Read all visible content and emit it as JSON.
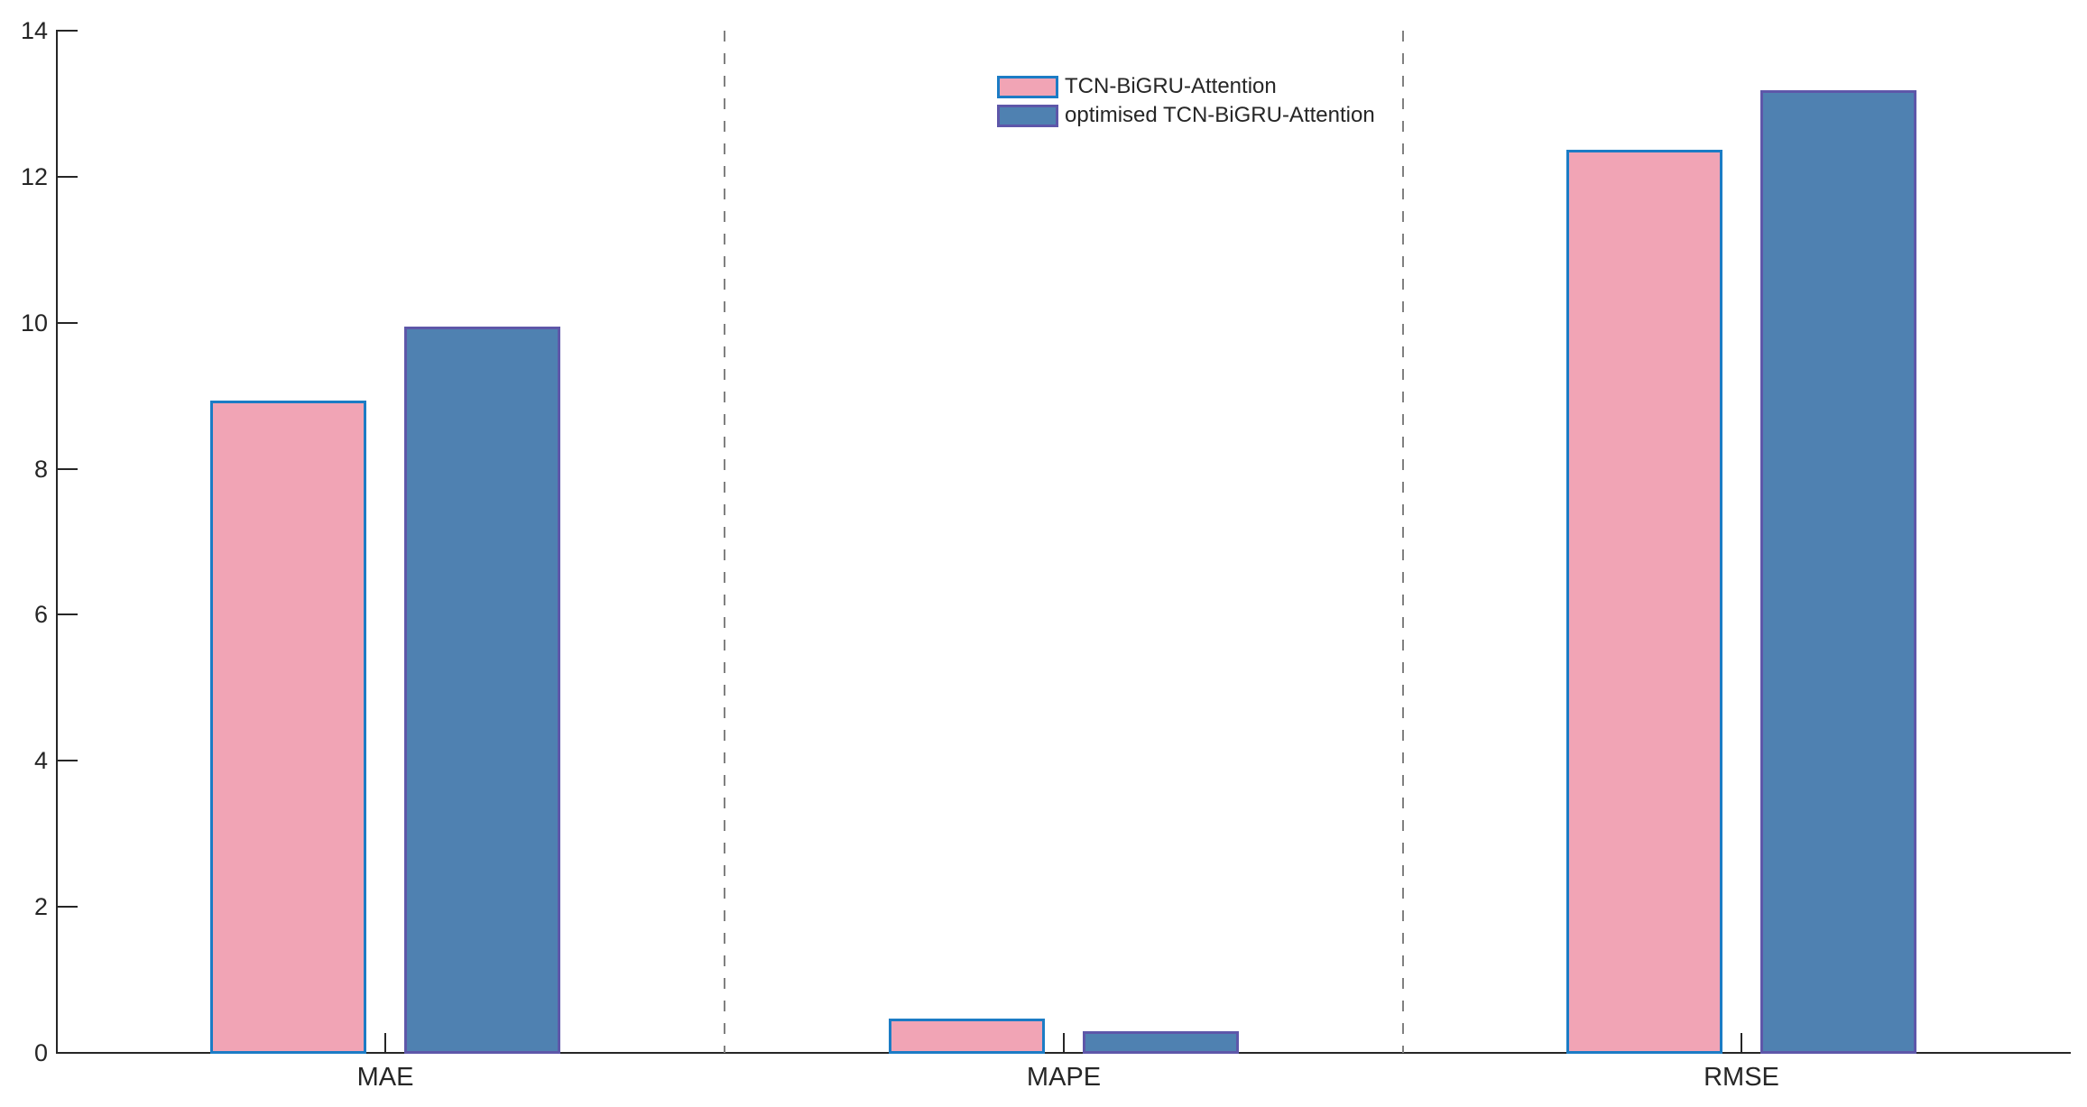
{
  "chart_data": {
    "type": "bar",
    "title": "",
    "xlabel": "",
    "ylabel": "",
    "categories": [
      "MAE",
      "MAPE",
      "RMSE"
    ],
    "series": [
      {
        "name": "TCN-BiGRU-Attention",
        "fill_color": "#F1A4B5",
        "edge_color": "#1C7CC5",
        "values": [
          8.93,
          0.47,
          12.37
        ]
      },
      {
        "name": "optimised TCN-BiGRU-Attention",
        "fill_color": "#4F81B1",
        "edge_color": "#5E57A9",
        "values": [
          9.95,
          0.3,
          13.18
        ]
      }
    ],
    "ylim": [
      0,
      14
    ],
    "yticks": [
      0,
      2,
      4,
      6,
      8,
      10,
      12,
      14
    ],
    "grid": false,
    "legend_position": "north",
    "legend_frame": false,
    "separators": {
      "style": "dashed",
      "color": "#808080",
      "placement": "between-category-groups"
    },
    "axis_color": "#262626",
    "background_color": "#FFFFFF"
  }
}
